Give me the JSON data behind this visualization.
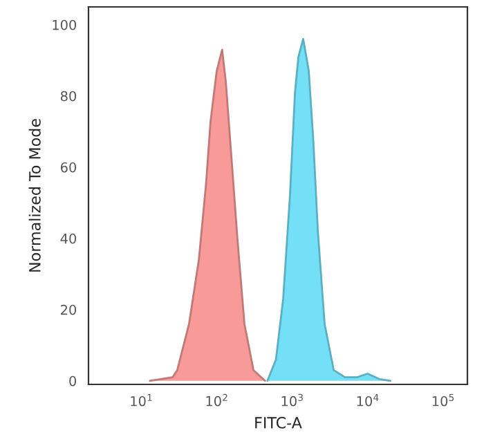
{
  "chart_data": {
    "type": "area",
    "xlabel": "FITC-A",
    "ylabel": "Normalized To Mode",
    "log": "x",
    "xlim": [
      2,
      210000
    ],
    "ylim": [
      -1,
      105
    ],
    "xticks": [
      {
        "value": 10,
        "label": "10$^{1}$"
      },
      {
        "value": 100,
        "label": "10$^{2}$"
      },
      {
        "value": 1000,
        "label": "10$^{3}$"
      },
      {
        "value": 10000,
        "label": "10$^{4}$"
      },
      {
        "value": 100000,
        "label": "10$^{5}$"
      }
    ],
    "yticks": [
      0,
      20,
      40,
      60,
      80,
      100
    ],
    "grid": false,
    "series": [
      {
        "color": "#f79a98",
        "x": [
          13,
          26,
          30,
          43,
          58,
          72,
          83,
          100,
          118,
          132,
          159,
          188,
          233,
          307,
          437
        ],
        "values": [
          0,
          1,
          3,
          16,
          34,
          55,
          73,
          87,
          93,
          84,
          61,
          40,
          16,
          3,
          0
        ]
      },
      {
        "color": "#74e0f8",
        "x": [
          470,
          610,
          760,
          935,
          1090,
          1210,
          1400,
          1660,
          1900,
          2190,
          2690,
          3550,
          5000,
          7200,
          10000,
          14300,
          20000
        ],
        "values": [
          0,
          6,
          23,
          52,
          81,
          91,
          96,
          87,
          68,
          42,
          16,
          3,
          1,
          1,
          2,
          0.5,
          0
        ]
      }
    ]
  }
}
